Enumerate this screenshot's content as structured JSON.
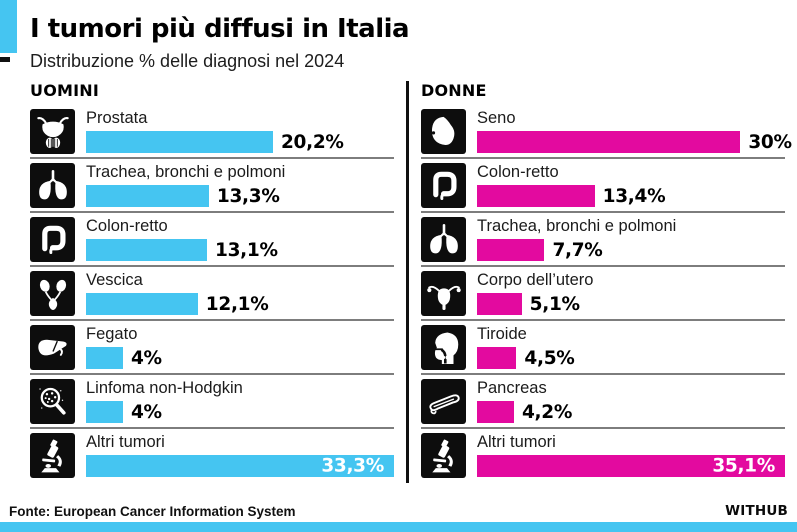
{
  "page": {
    "title": "I tumori più diffusi in Italia",
    "subtitle": "Distribuzione % delle diagnosi nel 2024",
    "source": "Fonte: European Cancer Information System",
    "brand": "WITHUB"
  },
  "colors": {
    "accent_cyan": "#45C5F1",
    "accent_magenta": "#E30A9F",
    "icon_background": "#0D0D0D",
    "separator": "#7D7D7D"
  },
  "chart_data": [
    {
      "type": "bar",
      "orientation": "horizontal",
      "title": "UOMINI",
      "bar_color": "#45C5F1",
      "max_value": 33.3,
      "xlim": [
        0,
        33.3
      ],
      "categories": [
        "Prostata",
        "Trachea, bronchi e polmoni",
        "Colon-retto",
        "Vescica",
        "Fegato",
        "Linfoma non-Hodgkin",
        "Altri tumori"
      ],
      "values": [
        20.2,
        13.3,
        13.1,
        12.1,
        4,
        4,
        33.3
      ],
      "value_labels": [
        "20,2%",
        "13,3%",
        "13,1%",
        "12,1%",
        "4%",
        "4%",
        "33,3%"
      ],
      "icons": [
        "prostate-icon",
        "lungs-icon",
        "colon-icon",
        "bladder-icon",
        "liver-icon",
        "lymphoma-icon",
        "microscope-icon"
      ]
    },
    {
      "type": "bar",
      "orientation": "horizontal",
      "title": "DONNE",
      "bar_color": "#E30A9F",
      "max_value": 35.1,
      "xlim": [
        0,
        35.1
      ],
      "categories": [
        "Seno",
        "Colon-retto",
        "Trachea, bronchi e polmoni",
        "Corpo dell’utero",
        "Tiroide",
        "Pancreas",
        "Altri tumori"
      ],
      "values": [
        30,
        13.4,
        7.7,
        5.1,
        4.5,
        4.2,
        35.1
      ],
      "value_labels": [
        "30%",
        "13,4%",
        "7,7%",
        "5,1%",
        "4,5%",
        "4,2%",
        "35,1%"
      ],
      "icons": [
        "breast-icon",
        "colon-icon",
        "lungs-icon",
        "uterus-icon",
        "thyroid-icon",
        "pancreas-icon",
        "microscope-icon"
      ]
    }
  ]
}
